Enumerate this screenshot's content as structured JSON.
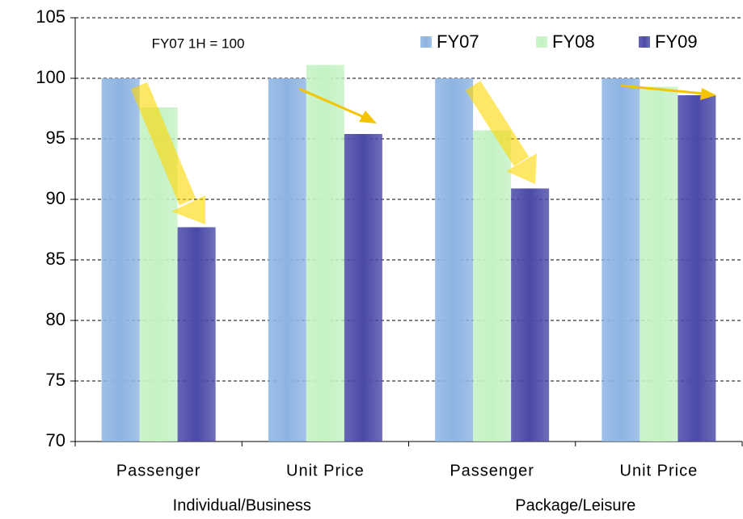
{
  "chart_data": {
    "type": "bar",
    "annotation": "FY07 1H = 100",
    "categories": [
      "Passenger",
      "Unit Price",
      "Passenger",
      "Unit Price"
    ],
    "groups": [
      "Individual/Business",
      "Package/Leisure"
    ],
    "series": [
      {
        "name": "FY07",
        "color": "#8db4e2",
        "values": [
          100,
          100,
          100,
          100
        ]
      },
      {
        "name": "FY08",
        "color": "#c4f2c4",
        "values": [
          97.6,
          101.1,
          95.7,
          99.3
        ]
      },
      {
        "name": "FY09",
        "color": "#4a4aa8",
        "values": [
          87.7,
          95.4,
          90.9,
          98.6
        ]
      }
    ],
    "ylim": [
      70,
      105
    ],
    "yticks": [
      70,
      75,
      80,
      85,
      90,
      95,
      100,
      105
    ],
    "grid": true,
    "legend": "top-right"
  }
}
